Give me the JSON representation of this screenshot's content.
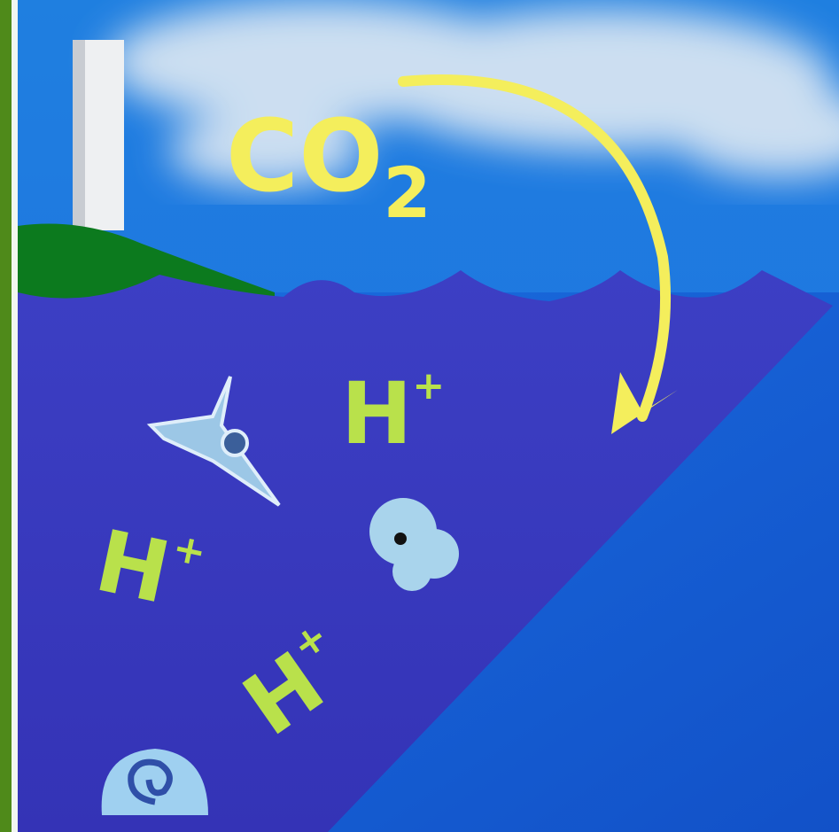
{
  "co2": {
    "text": "CO",
    "subscript": "2"
  },
  "ions": [
    {
      "text": "H",
      "superscript": "+"
    },
    {
      "text": "H",
      "superscript": "+"
    },
    {
      "text": "H",
      "superscript": "+"
    }
  ]
}
